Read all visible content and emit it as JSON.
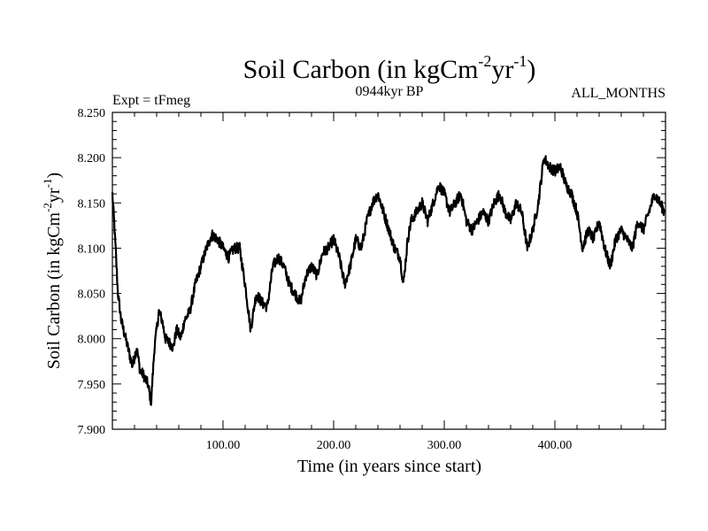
{
  "chart_data": {
    "type": "line",
    "title": "Soil Carbon (in kgCm",
    "title_exp1": "-2",
    "title_mid": "yr",
    "title_exp2": "-1",
    "title_end": ")",
    "subtitle_left": "Expt = tFmeg",
    "subtitle_center": "0944kyr BP",
    "subtitle_right": "ALL_MONTHS",
    "xlabel": "Time (in years since start)",
    "ylabel": "Soil Carbon (in kgCm",
    "ylabel_exp1": "-2",
    "ylabel_mid": "yr",
    "ylabel_exp2": "-1",
    "ylabel_end": ")",
    "xlim": [
      0,
      500
    ],
    "ylim": [
      7.9,
      8.25
    ],
    "x_ticks": [
      100,
      200,
      300,
      400
    ],
    "x_tick_labels": [
      "100.00",
      "200.00",
      "300.00",
      "400.00"
    ],
    "y_ticks": [
      7.9,
      7.95,
      8.0,
      8.05,
      8.1,
      8.15,
      8.2,
      8.25
    ],
    "y_tick_labels": [
      "7.900",
      "7.950",
      "8.000",
      "8.050",
      "8.100",
      "8.150",
      "8.200",
      "8.250"
    ],
    "series": [
      {
        "name": "Soil Carbon",
        "color": "#000000",
        "x": [
          0,
          2,
          5,
          8,
          12,
          15,
          18,
          22,
          25,
          28,
          32,
          35,
          38,
          42,
          45,
          48,
          52,
          55,
          58,
          62,
          65,
          70,
          75,
          80,
          85,
          90,
          95,
          100,
          105,
          110,
          115,
          120,
          125,
          130,
          135,
          140,
          145,
          150,
          155,
          160,
          165,
          170,
          175,
          180,
          185,
          190,
          195,
          200,
          205,
          210,
          215,
          220,
          225,
          230,
          235,
          240,
          245,
          250,
          255,
          260,
          263,
          267,
          270,
          275,
          280,
          285,
          290,
          295,
          300,
          305,
          310,
          315,
          320,
          325,
          330,
          335,
          340,
          345,
          350,
          355,
          360,
          365,
          370,
          375,
          380,
          385,
          390,
          395,
          400,
          405,
          410,
          415,
          420,
          425,
          430,
          435,
          440,
          445,
          450,
          455,
          460,
          465,
          470,
          475,
          480,
          485,
          490,
          495,
          499
        ],
        "values": [
          8.16,
          8.12,
          8.05,
          8.02,
          8.0,
          7.985,
          7.97,
          7.99,
          7.965,
          7.96,
          7.95,
          7.93,
          7.99,
          8.03,
          8.02,
          8.0,
          7.995,
          7.99,
          8.01,
          8.0,
          8.02,
          8.03,
          8.06,
          8.08,
          8.1,
          8.115,
          8.11,
          8.1,
          8.09,
          8.1,
          8.1,
          8.06,
          8.01,
          8.05,
          8.04,
          8.035,
          8.08,
          8.09,
          8.08,
          8.06,
          8.05,
          8.04,
          8.07,
          8.08,
          8.07,
          8.095,
          8.1,
          8.11,
          8.09,
          8.06,
          8.08,
          8.11,
          8.1,
          8.13,
          8.15,
          8.16,
          8.14,
          8.12,
          8.1,
          8.09,
          8.06,
          8.11,
          8.13,
          8.14,
          8.15,
          8.13,
          8.15,
          8.17,
          8.16,
          8.14,
          8.15,
          8.16,
          8.13,
          8.12,
          8.13,
          8.14,
          8.13,
          8.15,
          8.16,
          8.14,
          8.13,
          8.15,
          8.14,
          8.1,
          8.12,
          8.15,
          8.2,
          8.19,
          8.185,
          8.19,
          8.17,
          8.16,
          8.14,
          8.1,
          8.12,
          8.11,
          8.13,
          8.1,
          8.08,
          8.11,
          8.12,
          8.11,
          8.1,
          8.13,
          8.12,
          8.14,
          8.16,
          8.15,
          8.14
        ]
      }
    ]
  }
}
